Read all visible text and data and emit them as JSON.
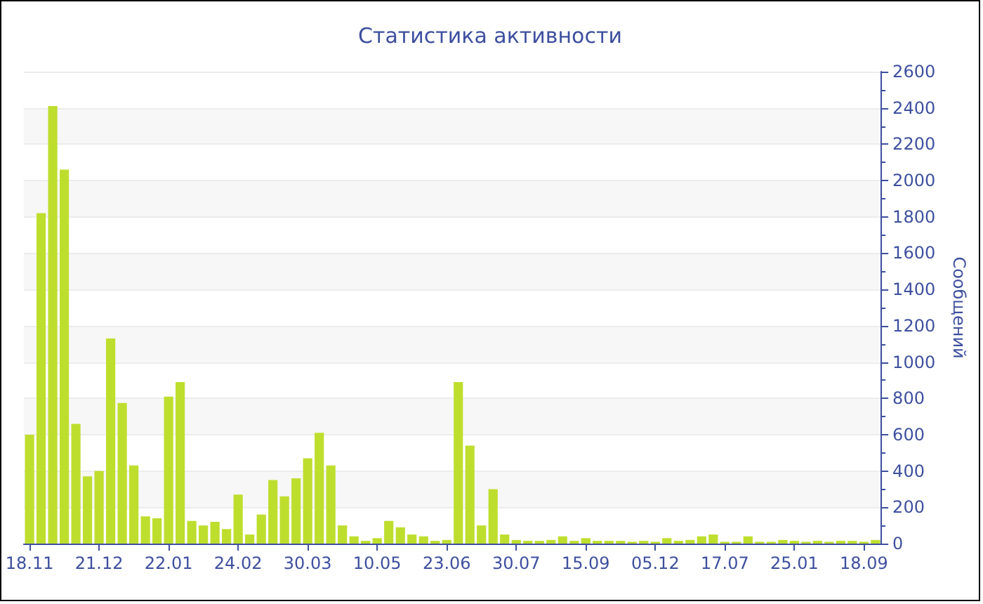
{
  "chart_data": {
    "type": "bar",
    "title": "Статистика активности",
    "ylabel": "Сообщений",
    "categories": [
      "18.11",
      null,
      null,
      null,
      null,
      null,
      "21.12",
      null,
      null,
      null,
      null,
      null,
      "22.01",
      null,
      null,
      null,
      null,
      null,
      "24.02",
      null,
      null,
      null,
      null,
      null,
      "30.03",
      null,
      null,
      null,
      null,
      null,
      "10.05",
      null,
      null,
      null,
      null,
      null,
      "23.06",
      null,
      null,
      null,
      null,
      null,
      "30.07",
      null,
      null,
      null,
      null,
      null,
      "15.09",
      null,
      null,
      null,
      null,
      null,
      "05.12",
      null,
      null,
      null,
      null,
      null,
      "17.07",
      null,
      null,
      null,
      null,
      null,
      "25.01",
      null,
      null,
      null,
      null,
      null,
      "18.09",
      null
    ],
    "values": [
      600,
      1820,
      2410,
      2060,
      660,
      370,
      400,
      1130,
      775,
      430,
      150,
      140,
      810,
      890,
      125,
      100,
      120,
      80,
      270,
      50,
      160,
      350,
      260,
      360,
      470,
      610,
      430,
      100,
      40,
      15,
      30,
      125,
      90,
      50,
      40,
      15,
      20,
      890,
      540,
      100,
      300,
      50,
      20,
      15,
      15,
      20,
      40,
      15,
      30,
      15,
      15,
      15,
      10,
      15,
      10,
      30,
      15,
      20,
      40,
      50,
      10,
      10,
      40,
      10,
      10,
      20,
      15,
      10,
      15,
      10,
      15,
      15,
      10,
      20
    ],
    "color": "#bede2e",
    "ylim": [
      0,
      2600
    ],
    "yticks": [
      0,
      200,
      400,
      600,
      800,
      1000,
      1200,
      1400,
      1600,
      1800,
      2000,
      2200,
      2400,
      2600
    ],
    "grid": "y"
  }
}
